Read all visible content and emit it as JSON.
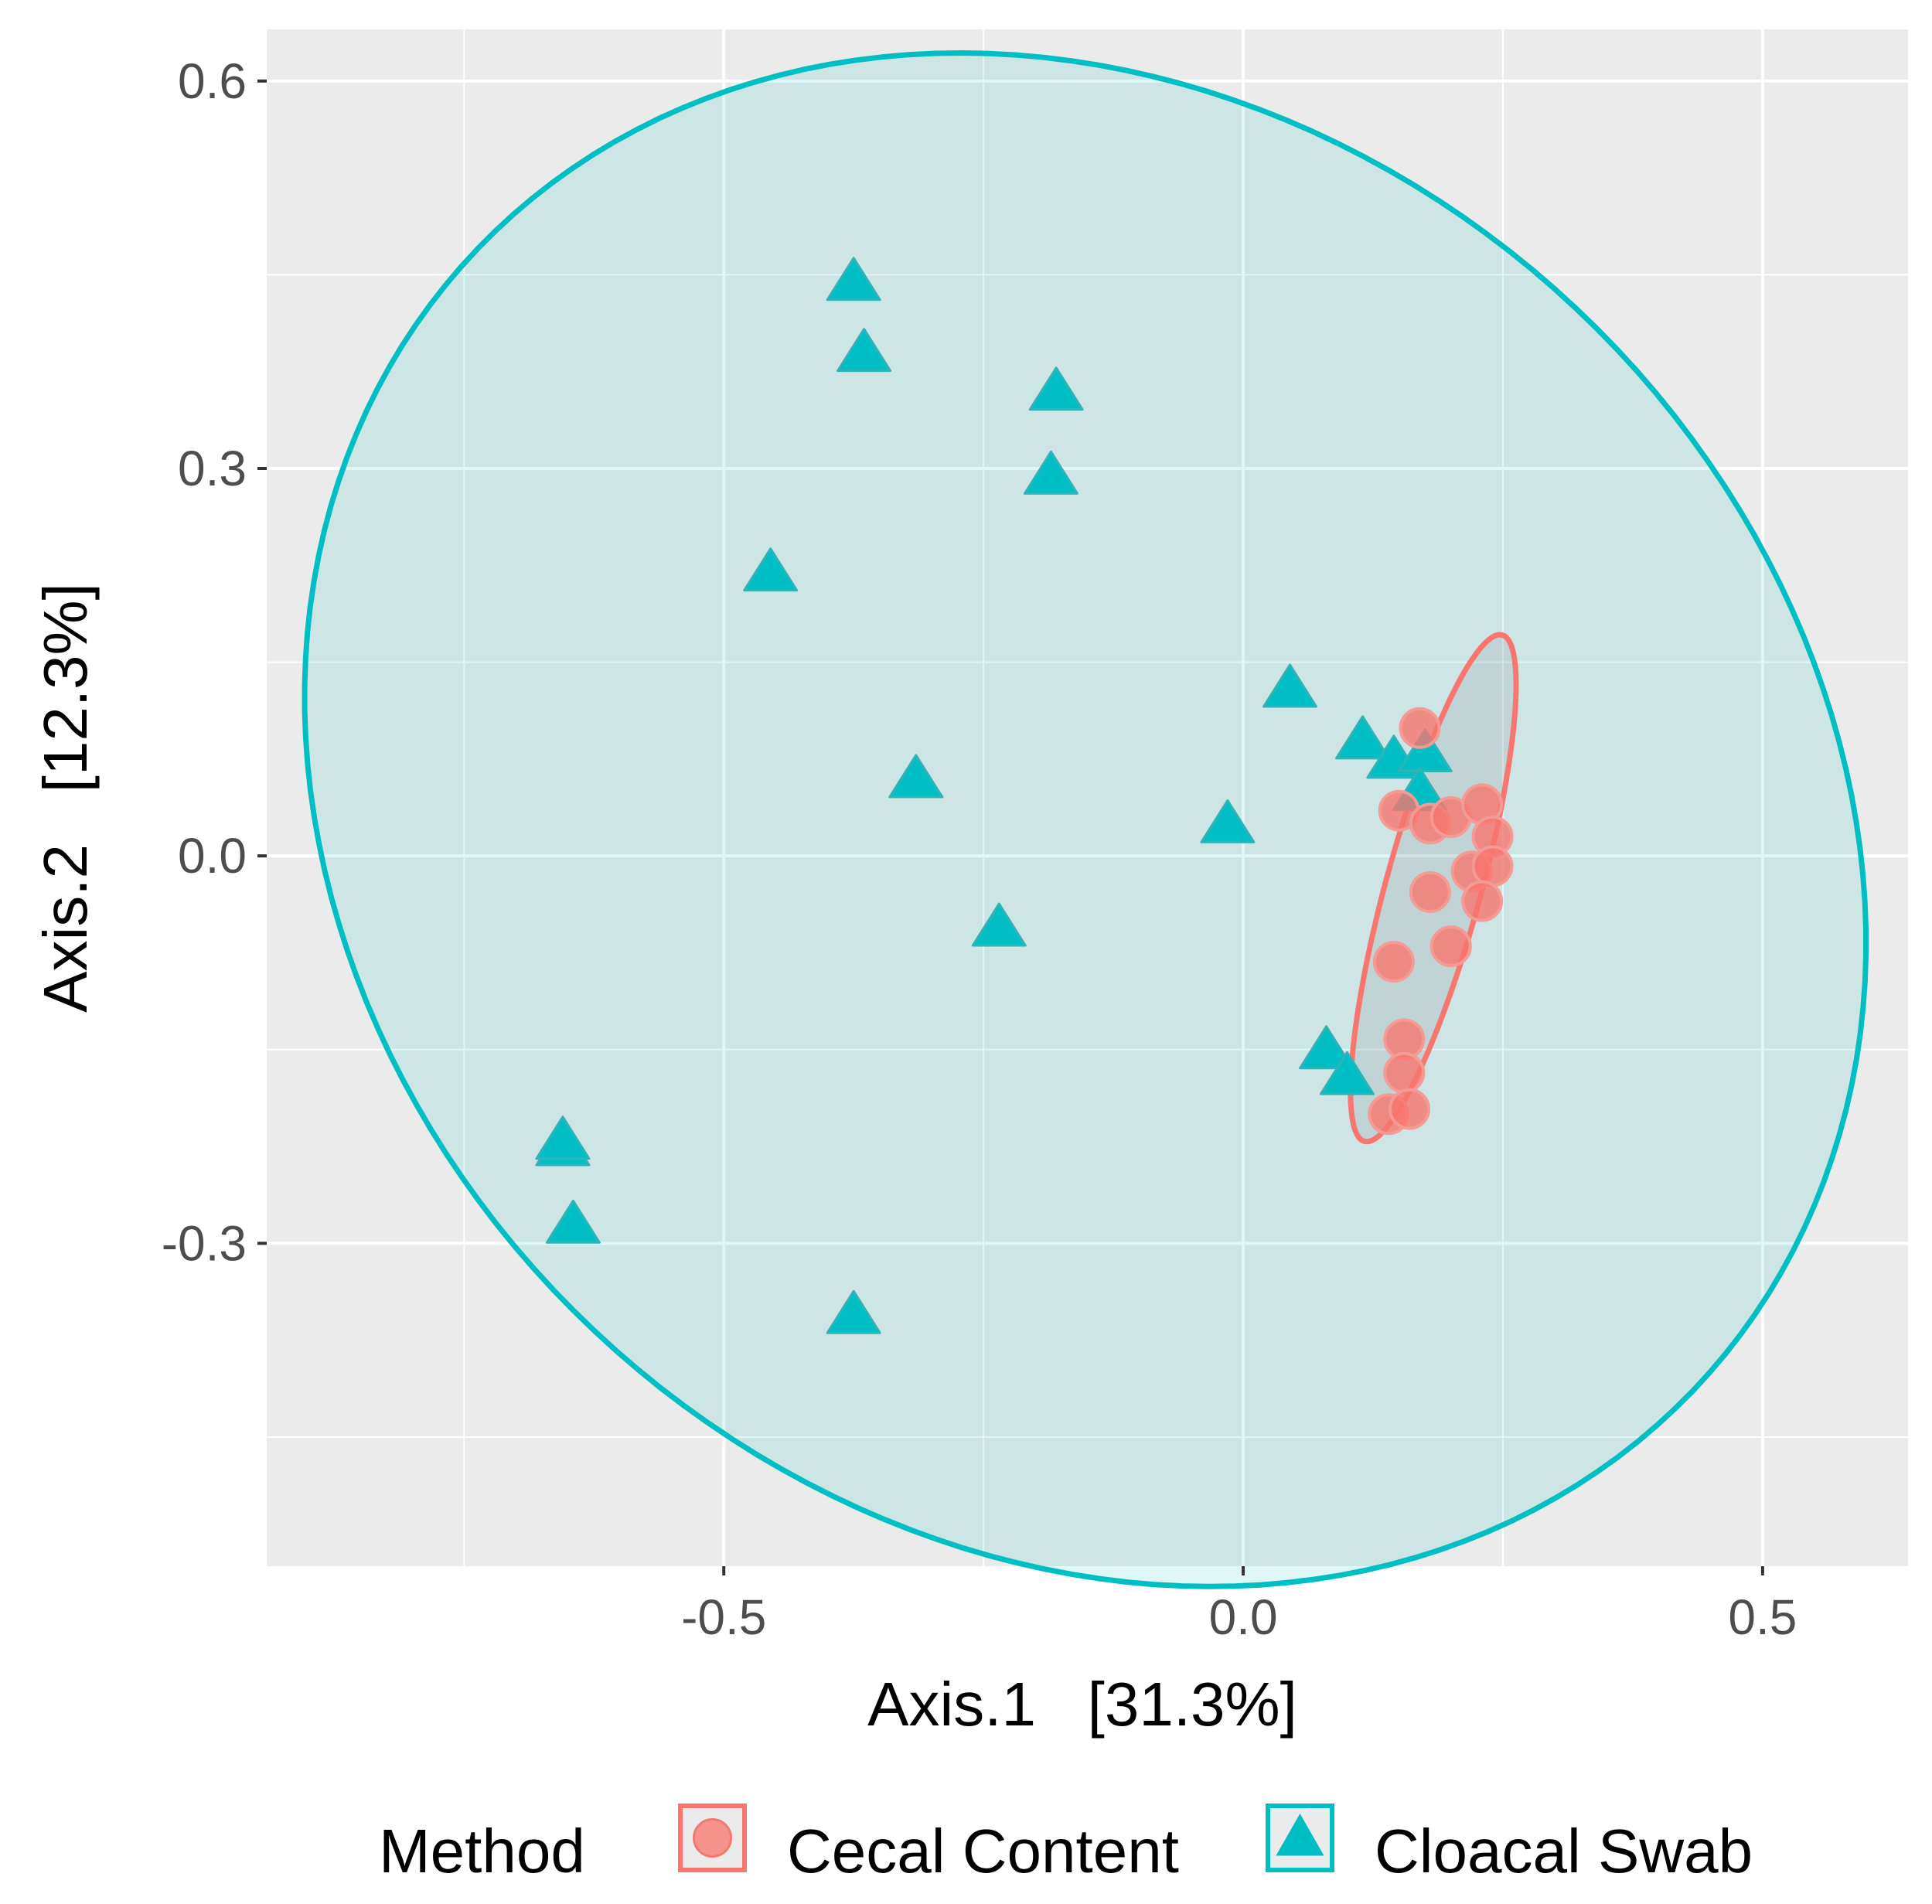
{
  "chart_data": {
    "type": "scatter",
    "title": "",
    "xlabel": "Axis.1   [31.3%]",
    "ylabel": "Axis.2   [12.3%]",
    "xlim": [
      -0.94,
      0.64
    ],
    "ylim": [
      -0.55,
      0.64
    ],
    "x_ticks": [
      {
        "value": -0.5,
        "label": "-0.5"
      },
      {
        "value": 0.0,
        "label": "0.0"
      },
      {
        "value": 0.5,
        "label": "0.5"
      }
    ],
    "y_ticks": [
      {
        "value": 0.6,
        "label": "0.6"
      },
      {
        "value": 0.3,
        "label": "0.3"
      },
      {
        "value": 0.0,
        "label": "0.0"
      },
      {
        "value": -0.3,
        "label": "-0.3"
      }
    ],
    "grid": true,
    "legend": {
      "title": "Method",
      "position": "bottom",
      "entries": [
        {
          "label": "Cecal Content",
          "series": "cecal"
        },
        {
          "label": "Cloacal Swab",
          "series": "cloacal"
        }
      ]
    },
    "series": [
      {
        "name": "Cecal Content",
        "key": "cecal",
        "marker": "circle",
        "color": "#F8766D",
        "points": [
          {
            "x": 0.17,
            "y": 0.099
          },
          {
            "x": 0.15,
            "y": 0.035
          },
          {
            "x": 0.18,
            "y": 0.025
          },
          {
            "x": 0.2,
            "y": 0.03
          },
          {
            "x": 0.23,
            "y": 0.04
          },
          {
            "x": 0.24,
            "y": 0.015
          },
          {
            "x": 0.22,
            "y": -0.012
          },
          {
            "x": 0.24,
            "y": -0.008
          },
          {
            "x": 0.23,
            "y": -0.035
          },
          {
            "x": 0.18,
            "y": -0.028
          },
          {
            "x": 0.2,
            "y": -0.07
          },
          {
            "x": 0.145,
            "y": -0.082
          },
          {
            "x": 0.155,
            "y": -0.142
          },
          {
            "x": 0.155,
            "y": -0.168
          },
          {
            "x": 0.14,
            "y": -0.2
          },
          {
            "x": 0.16,
            "y": -0.196
          }
        ],
        "ellipse": {
          "cx": 0.183,
          "cy": -0.025,
          "rx": 0.207,
          "ry": 0.045,
          "angle_deg": 71
        }
      },
      {
        "name": "Cloacal Swab",
        "key": "cloacal",
        "marker": "triangle",
        "color": "#00BFC4",
        "points": [
          {
            "x": -0.375,
            "y": 0.445
          },
          {
            "x": -0.365,
            "y": 0.39
          },
          {
            "x": -0.18,
            "y": 0.36
          },
          {
            "x": -0.185,
            "y": 0.295
          },
          {
            "x": -0.455,
            "y": 0.22
          },
          {
            "x": -0.315,
            "y": 0.06
          },
          {
            "x": -0.235,
            "y": -0.055
          },
          {
            "x": -0.015,
            "y": 0.025
          },
          {
            "x": 0.045,
            "y": 0.13
          },
          {
            "x": 0.115,
            "y": 0.09
          },
          {
            "x": 0.145,
            "y": 0.075
          },
          {
            "x": 0.175,
            "y": 0.08
          },
          {
            "x": 0.17,
            "y": 0.05
          },
          {
            "x": 0.08,
            "y": -0.15
          },
          {
            "x": 0.1,
            "y": -0.17
          },
          {
            "x": -0.655,
            "y": -0.225
          },
          {
            "x": -0.655,
            "y": -0.22
          },
          {
            "x": -0.645,
            "y": -0.285
          },
          {
            "x": -0.375,
            "y": -0.355
          }
        ],
        "ellipse": {
          "cx": -0.152,
          "cy": 0.028,
          "rx": 0.766,
          "ry": 0.575,
          "angle_deg": -17
        }
      }
    ]
  }
}
